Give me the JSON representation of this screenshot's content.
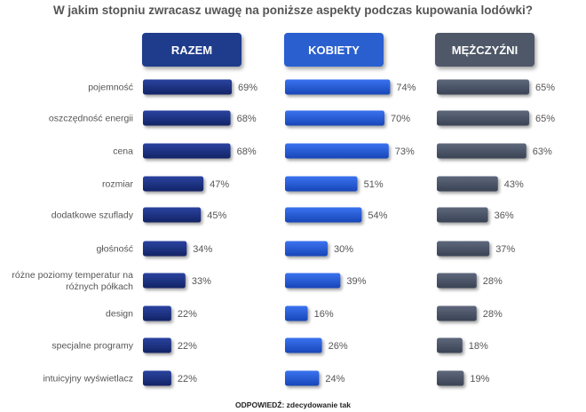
{
  "chart_data": {
    "type": "bar",
    "title": "W jakim stopniu zwracasz uwagę na poniższe aspekty podczas kupowania lodówki?",
    "categories": [
      "pojemność",
      "oszczędność energii",
      "cena",
      "rozmiar",
      "dodatkowe szuflady",
      "głośność",
      "różne poziomy temperatur na różnych półkach",
      "design",
      "specjalne programy",
      "intuicyjny wyświetlacz"
    ],
    "series": [
      {
        "name": "RAZEM",
        "values": [
          69,
          68,
          68,
          47,
          45,
          34,
          33,
          22,
          22,
          22
        ],
        "color": "#1a2f7a",
        "header_color": "#1f3c8c"
      },
      {
        "name": "KOBIETY",
        "values": [
          74,
          70,
          73,
          51,
          54,
          30,
          39,
          16,
          26,
          24
        ],
        "color": "#1f56d6",
        "header_color": "#2a5fd0"
      },
      {
        "name": "MĘŻCZYŹNI",
        "values": [
          65,
          65,
          63,
          43,
          36,
          37,
          28,
          28,
          18,
          19
        ],
        "color": "#4a5468",
        "header_color": "#4f5868"
      }
    ],
    "value_suffix": "%",
    "layout": "three side-by-side horizontal bar panels",
    "legend": "column headers above each panel"
  },
  "footnote": {
    "text": "ODPOWIEDŹ: zdecydowanie tak"
  }
}
